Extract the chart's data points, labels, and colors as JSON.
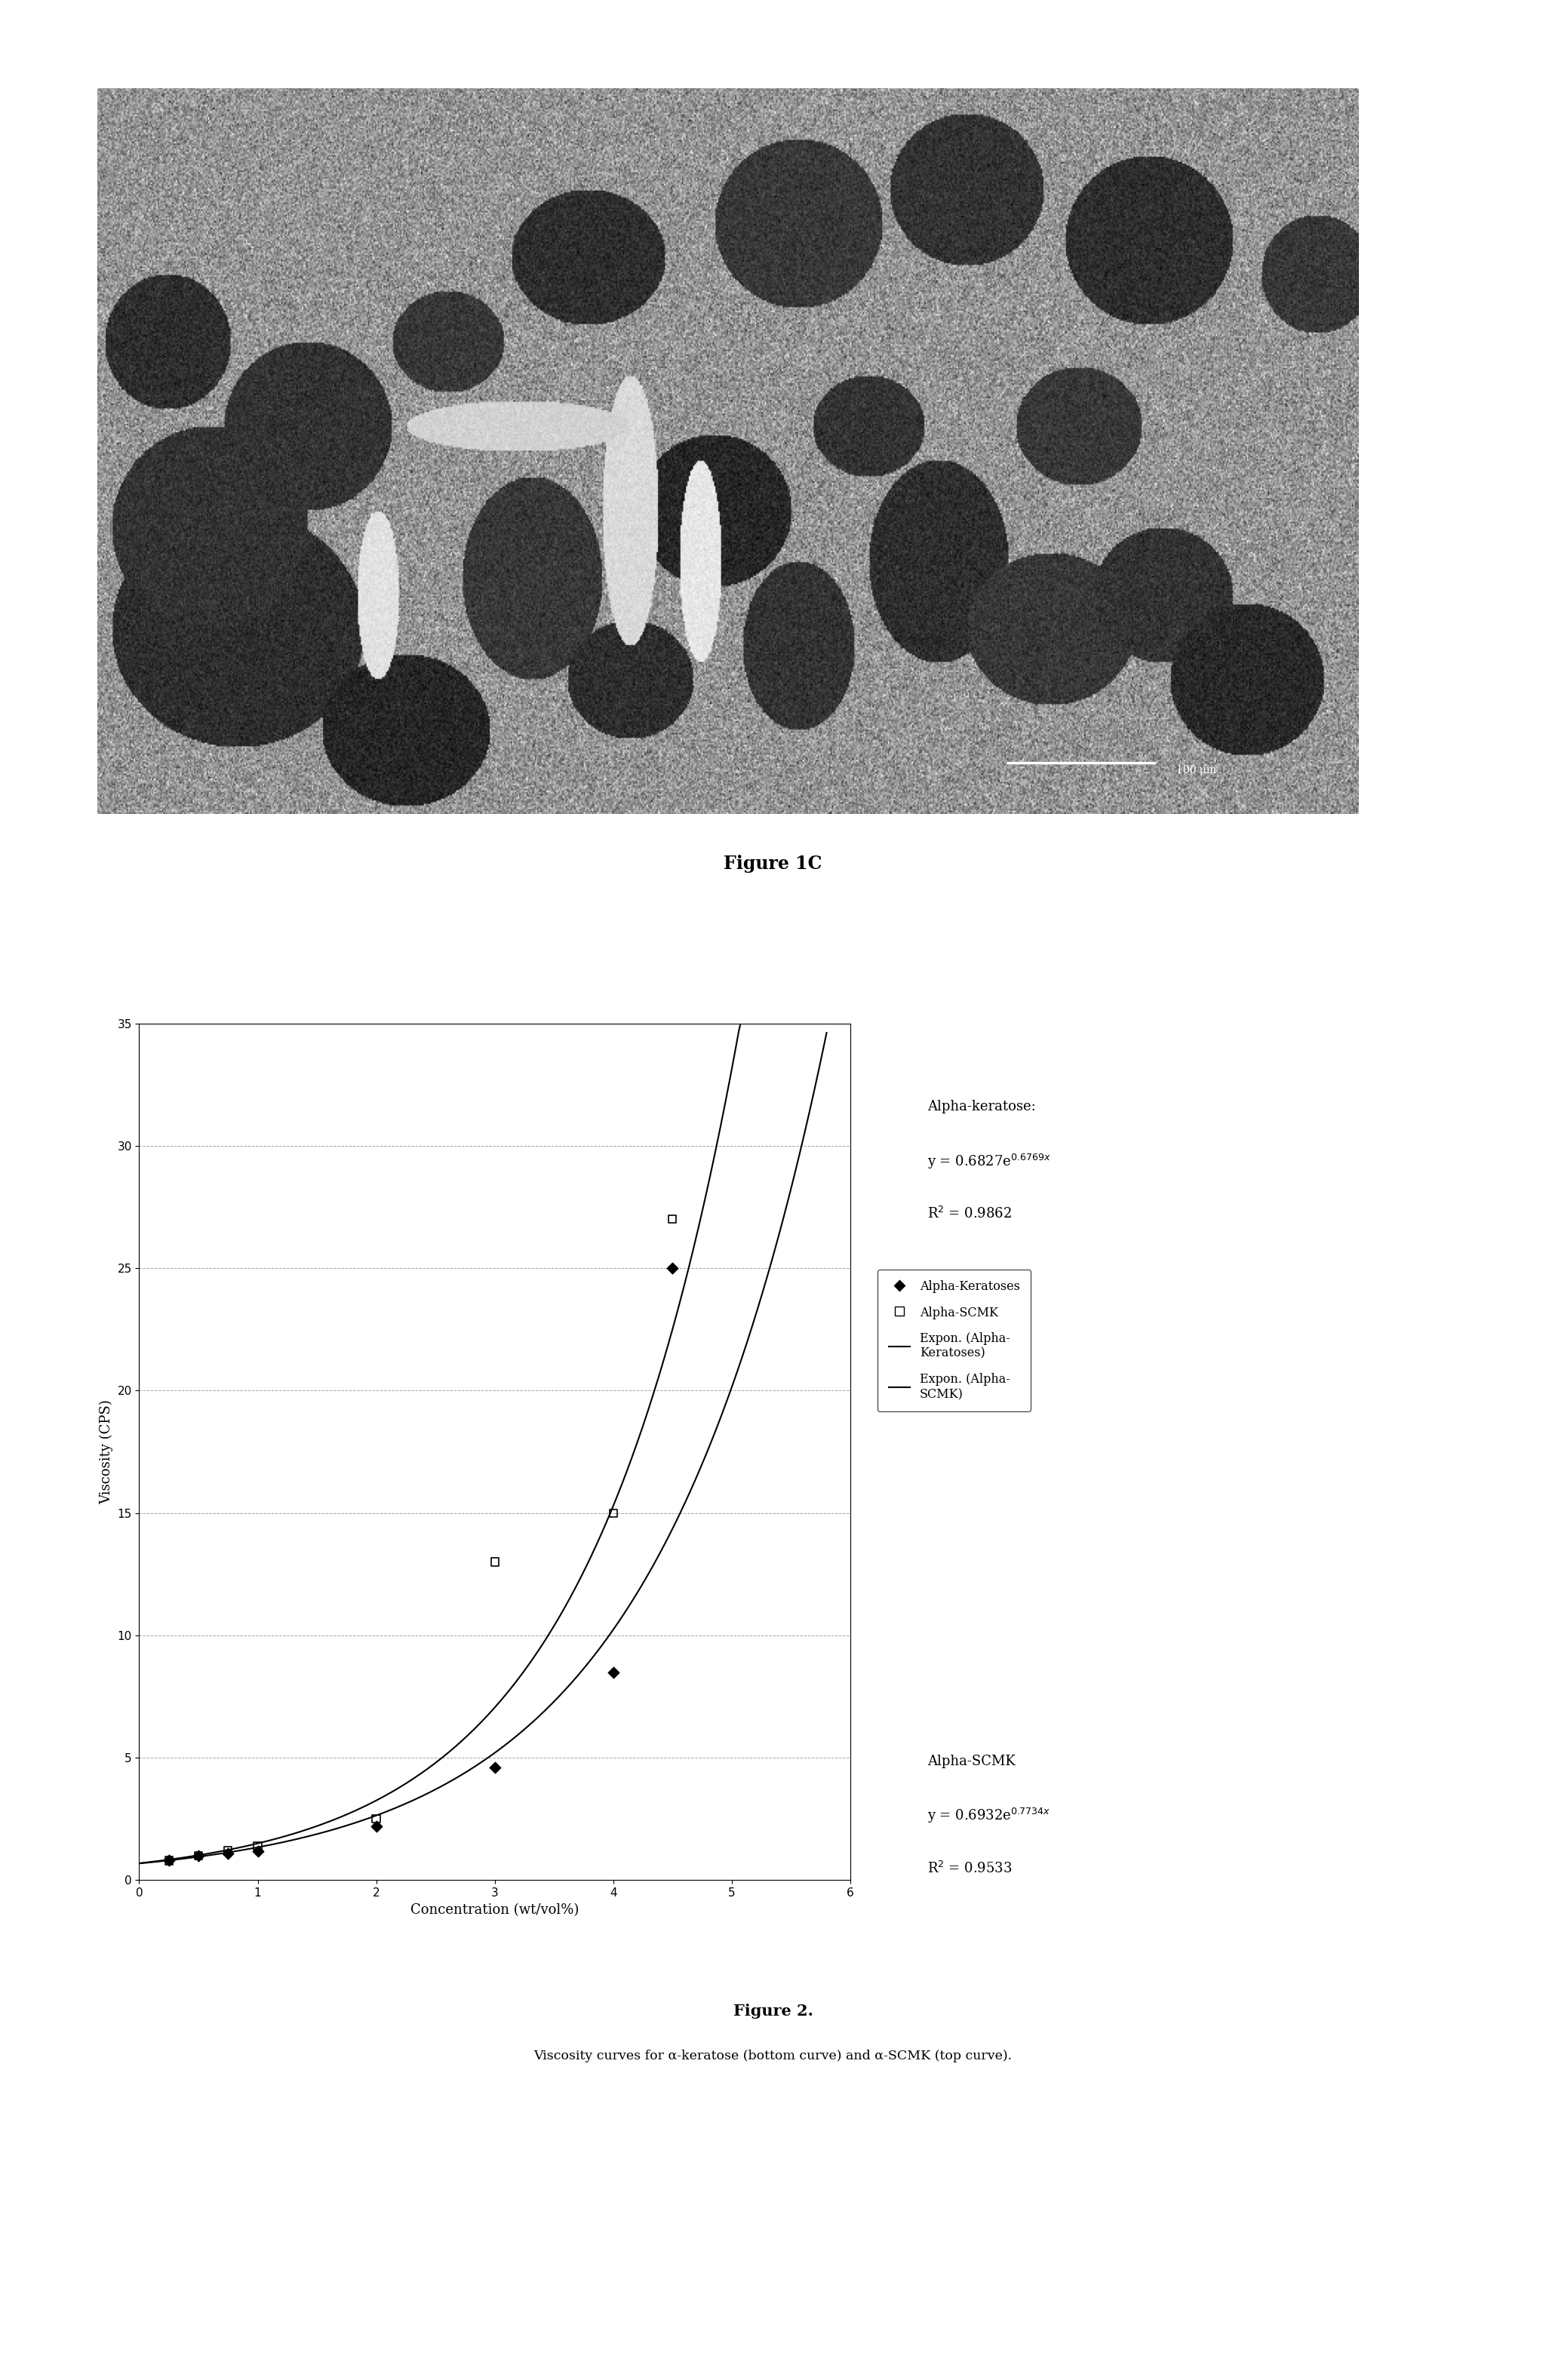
{
  "figure1c_caption": "Figure 1C",
  "plot_title": "",
  "xlabel": "Concentration (wt/vol%)",
  "ylabel": "Viscosity (CPS)",
  "xlim": [
    0,
    6
  ],
  "ylim": [
    0,
    35
  ],
  "xticks": [
    0,
    1,
    2,
    3,
    4,
    5,
    6
  ],
  "yticks": [
    0,
    5,
    10,
    15,
    20,
    25,
    30,
    35
  ],
  "alpha_keratoses_x": [
    0.25,
    0.5,
    0.75,
    1.0,
    2.0,
    3.0,
    4.0
  ],
  "alpha_keratoses_y": [
    0.8,
    1.0,
    1.1,
    1.2,
    2.2,
    4.6,
    8.5
  ],
  "alpha_keratoses_last_x": [
    4.5
  ],
  "alpha_keratoses_last_y": [
    25.0
  ],
  "alpha_scmk_x": [
    0.25,
    0.5,
    0.75,
    1.0,
    2.0,
    3.0,
    4.0
  ],
  "alpha_scmk_y": [
    0.8,
    1.0,
    1.2,
    1.4,
    2.5,
    13.0,
    15.0
  ],
  "alpha_scmk_last_x": [
    4.5
  ],
  "alpha_scmk_last_y": [
    27.0
  ],
  "keratose_a": 0.6827,
  "keratose_b": 0.6769,
  "scmk_a": 0.6932,
  "scmk_b": 0.7734,
  "legend_keratoses": "Alpha-Keratoses",
  "legend_scmk": "Alpha-SCMK",
  "legend_expon_keratoses": "Expon. (Alpha-\nKeratoses)",
  "legend_expon_scmk": "Expon. (Alpha-\nSCMK)",
  "figure2_caption": "Figure 2.",
  "figure2_subcaption": "Viscosity curves for α-keratose (bottom curve) and α-SCMK (top curve).",
  "line_color": "#000000",
  "marker_color": "#000000",
  "background_color": "#ffffff",
  "grid_color": "#999999",
  "grid_style": "--",
  "sem_bg_mean": 0.58,
  "sem_bg_std": 0.12,
  "sem_seed": 7
}
